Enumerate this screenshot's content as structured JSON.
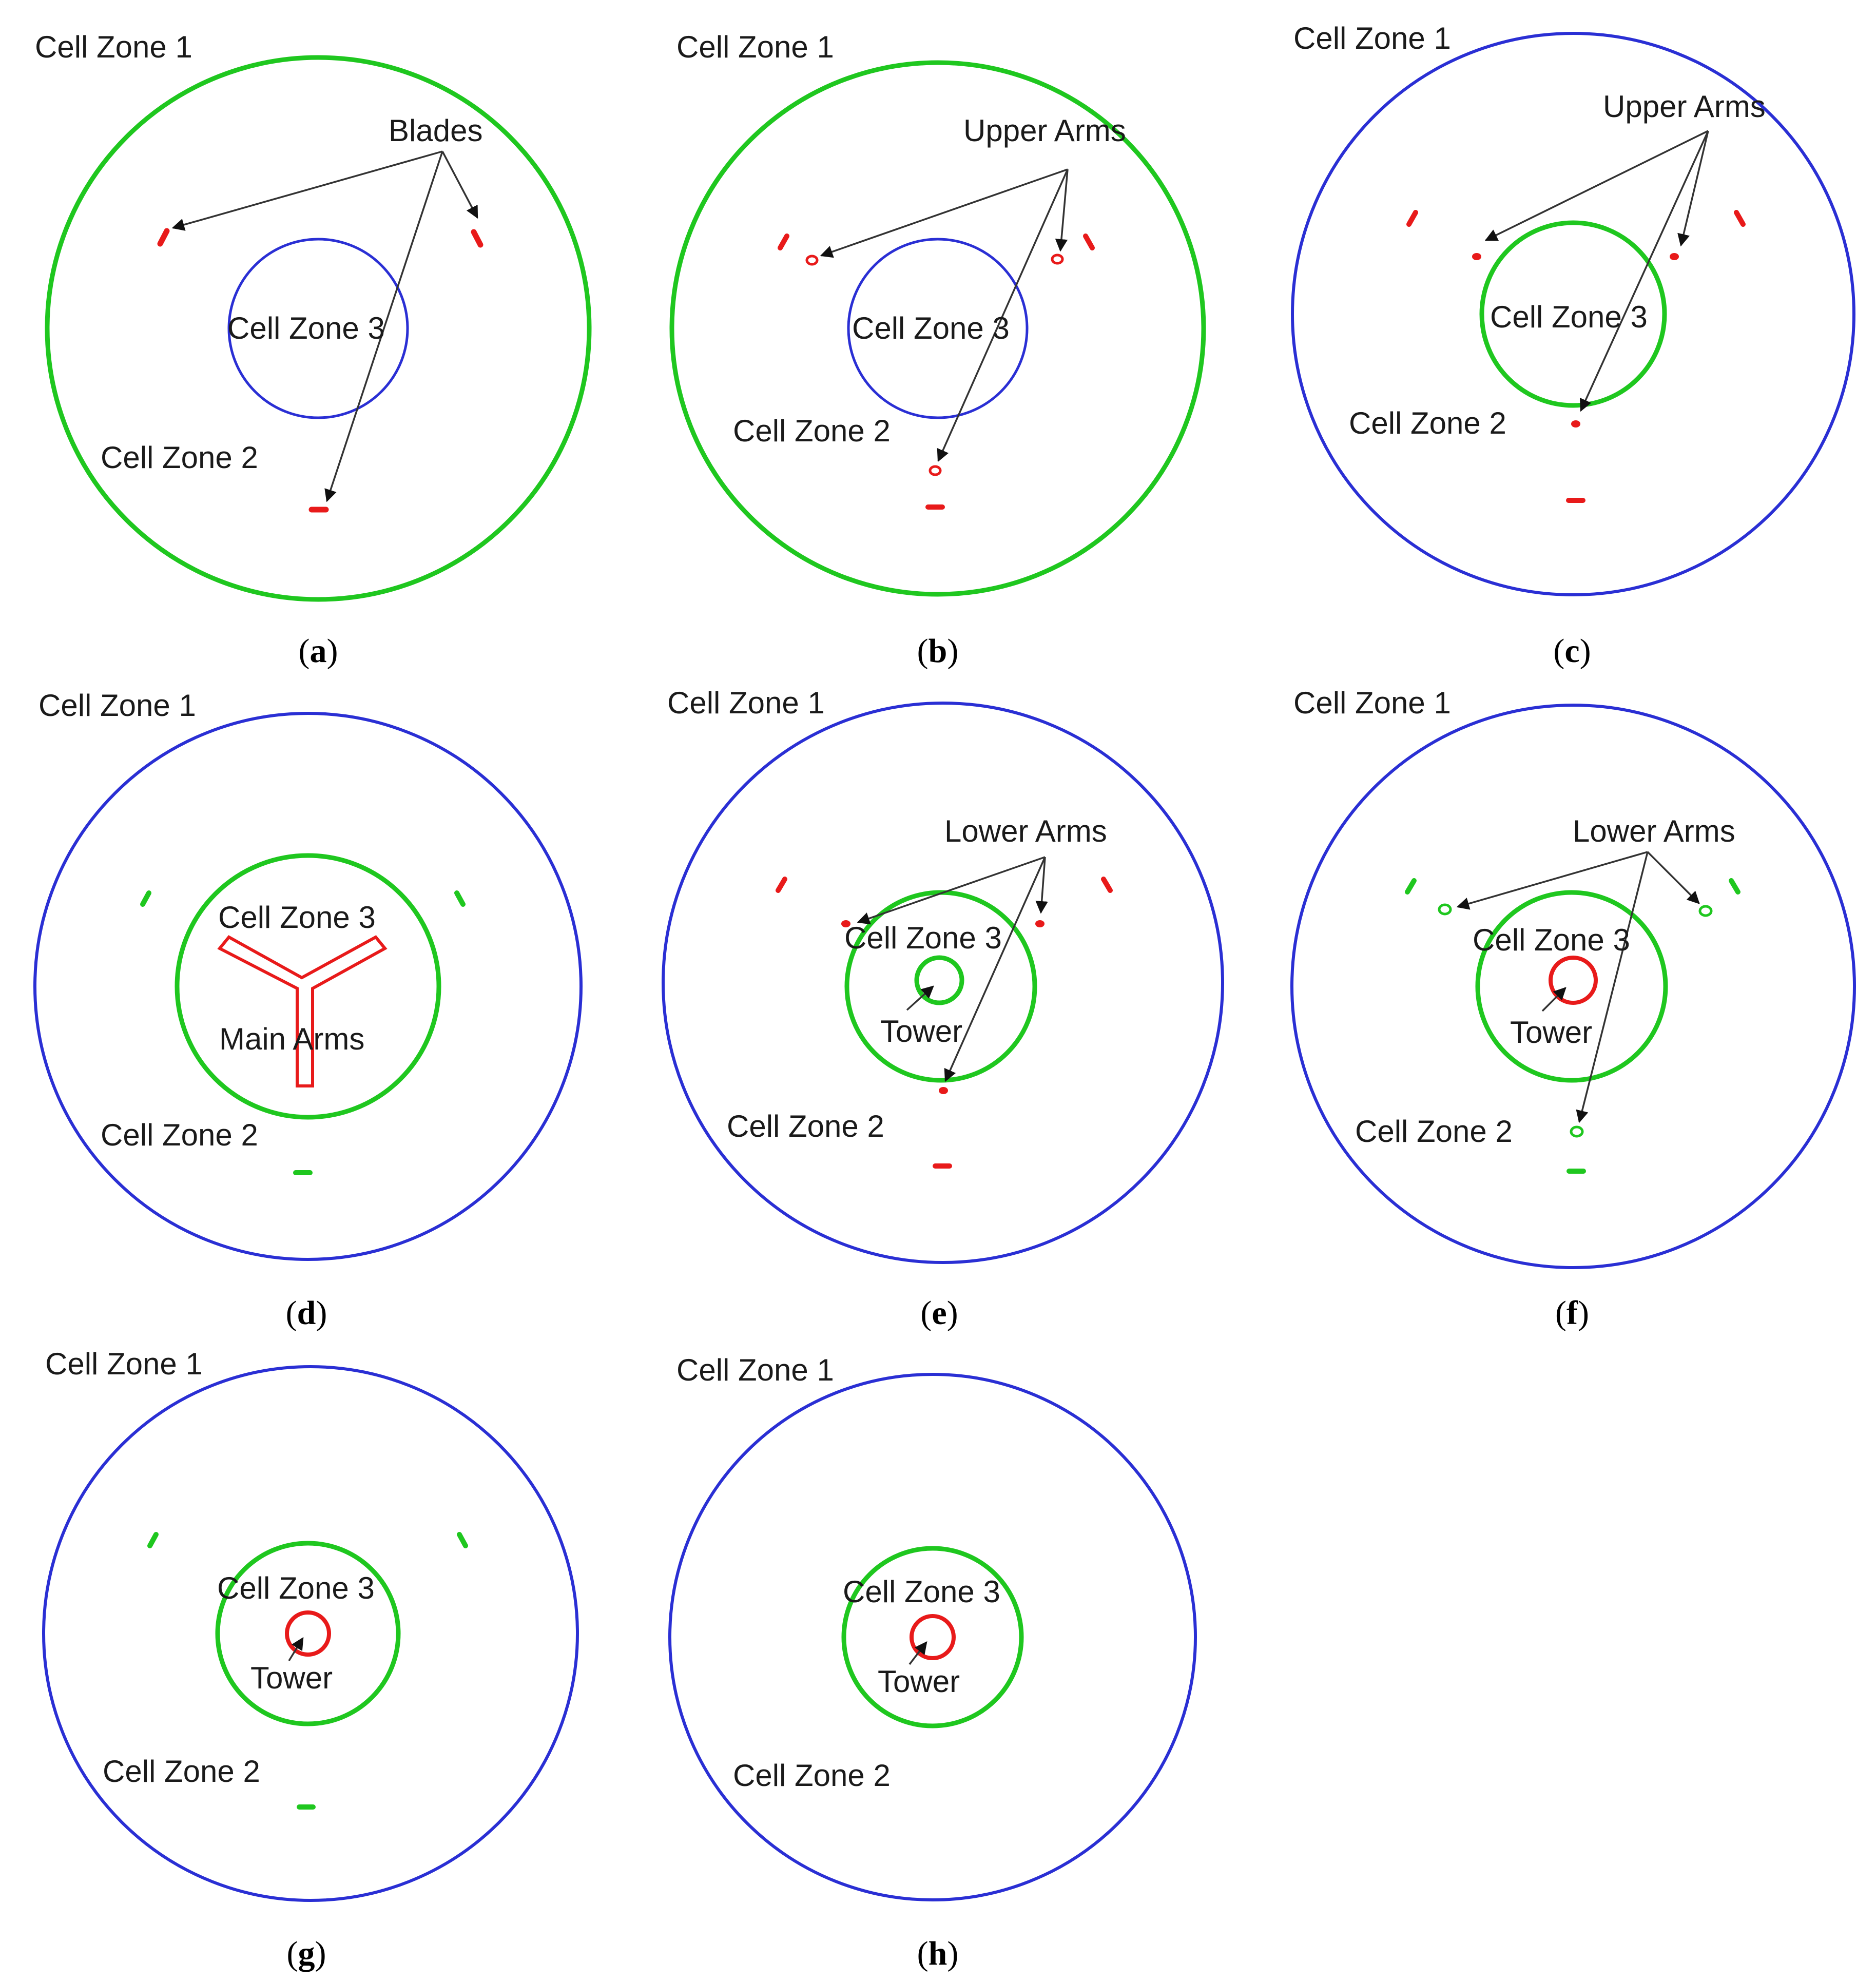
{
  "colors": {
    "green": "#1fc71f",
    "blue": "#2a2fd4",
    "red": "#e81a1a",
    "arrow": "#333333"
  },
  "labels": {
    "cell_zone_1": "Cell Zone 1",
    "cell_zone_2": "Cell Zone 2",
    "cell_zone_3": "Cell Zone 3",
    "blades": "Blades",
    "upper_arms": "Upper Arms",
    "lower_arms": "Lower Arms",
    "main_arms": "Main Arms",
    "tower": "Tower"
  },
  "panels": [
    {
      "letter": "a",
      "caption_open": "(",
      "caption_close": ")",
      "outer_color": "green",
      "inner_color": "blue",
      "callout": "Blades",
      "shows_tower": false
    },
    {
      "letter": "b",
      "caption_open": "(",
      "caption_close": ")",
      "outer_color": "green",
      "inner_color": "blue",
      "callout": "Upper Arms",
      "shows_tower": false
    },
    {
      "letter": "c",
      "caption_open": "(",
      "caption_close": ")",
      "outer_color": "blue",
      "inner_color": "green",
      "callout": "Upper Arms",
      "shows_tower": false
    },
    {
      "letter": "d",
      "caption_open": "(",
      "caption_close": ")",
      "outer_color": "blue",
      "inner_color": "green",
      "callout": "Main Arms",
      "shows_tower": false
    },
    {
      "letter": "e",
      "caption_open": "(",
      "caption_close": ")",
      "outer_color": "blue",
      "inner_color": "green",
      "callout": "Lower Arms",
      "shows_tower": true
    },
    {
      "letter": "f",
      "caption_open": "(",
      "caption_close": ")",
      "outer_color": "blue",
      "inner_color": "green",
      "callout": "Lower Arms",
      "shows_tower": true
    },
    {
      "letter": "g",
      "caption_open": "(",
      "caption_close": ")",
      "outer_color": "blue",
      "inner_color": "green",
      "callout": "Tower",
      "shows_tower": true
    },
    {
      "letter": "h",
      "caption_open": "(",
      "caption_close": ")",
      "outer_color": "blue",
      "inner_color": "green",
      "callout": "Tower",
      "shows_tower": true
    }
  ]
}
